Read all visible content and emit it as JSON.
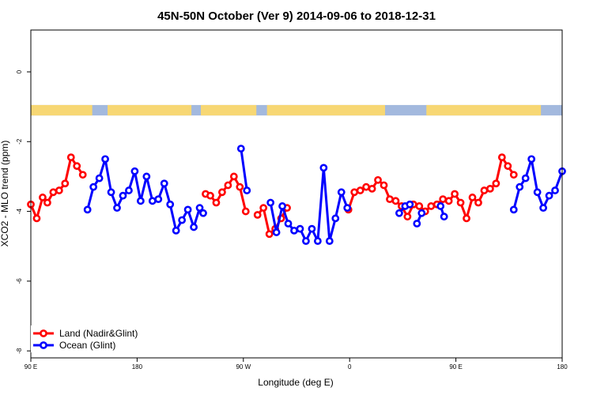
{
  "chart_data": {
    "type": "line",
    "title": "45N-50N October (Ver 9)   2014-09-06 to 2018-12-31",
    "xlabel": "Longitude (deg E)",
    "ylabel": "XCO2 - MLO trend (ppm)",
    "xlim": [
      90,
      540
    ],
    "ylim": [
      -8.2,
      1.2
    ],
    "x_ticks": [
      {
        "value": 90,
        "label": "90 E"
      },
      {
        "value": 180,
        "label": "180"
      },
      {
        "value": 270,
        "label": "90 W"
      },
      {
        "value": 360,
        "label": "0"
      },
      {
        "value": 450,
        "label": "90 E"
      },
      {
        "value": 540,
        "label": "180"
      }
    ],
    "y_ticks": [
      {
        "value": 0,
        "label": "0"
      },
      {
        "value": -2,
        "label": "-2"
      },
      {
        "value": -4,
        "label": "-4"
      },
      {
        "value": -6,
        "label": "-6"
      },
      {
        "value": -8,
        "label": "-8"
      }
    ],
    "grid": false,
    "legend_position": "bottom-left",
    "land_ocean_band": {
      "y_range": [
        -1.25,
        -0.95
      ],
      "land_color": "#f7d774",
      "ocean_color": "#a3b9de",
      "land_x": [
        [
          90,
          142
        ],
        [
          155,
          226
        ],
        [
          234,
          281
        ],
        [
          290,
          390
        ],
        [
          425,
          522
        ]
      ]
    },
    "series": [
      {
        "name": "Land (Nadir&Glint)",
        "color": "#ff0000",
        "segments": [
          [
            [
              90,
              -3.8
            ],
            [
              95,
              -4.2
            ],
            [
              100,
              -3.6
            ],
            [
              104,
              -3.75
            ],
            [
              109,
              -3.45
            ],
            [
              114,
              -3.4
            ],
            [
              119,
              -3.2
            ],
            [
              124,
              -2.45
            ],
            [
              129,
              -2.7
            ],
            [
              134,
              -2.95
            ]
          ],
          [
            [
              238,
              -3.5
            ],
            [
              242,
              -3.55
            ],
            [
              247,
              -3.75
            ],
            [
              252,
              -3.45
            ],
            [
              257,
              -3.25
            ],
            [
              262,
              -3.0
            ],
            [
              267,
              -3.3
            ],
            [
              272,
              -4.0
            ]
          ],
          [
            [
              282,
              -4.1
            ],
            [
              287,
              -3.9
            ],
            [
              292,
              -4.65
            ],
            [
              297,
              -4.5
            ],
            [
              302,
              -4.2
            ],
            [
              307,
              -3.9
            ]
          ],
          [
            [
              359,
              -3.95
            ],
            [
              364,
              -3.45
            ],
            [
              369,
              -3.4
            ],
            [
              374,
              -3.3
            ],
            [
              379,
              -3.35
            ],
            [
              384,
              -3.1
            ],
            [
              389,
              -3.25
            ],
            [
              394,
              -3.65
            ],
            [
              399,
              -3.7
            ],
            [
              404,
              -3.85
            ],
            [
              409,
              -4.15
            ],
            [
              414,
              -3.8
            ],
            [
              419,
              -3.85
            ],
            [
              424,
              -4.0
            ],
            [
              429,
              -3.85
            ],
            [
              434,
              -3.8
            ],
            [
              439,
              -3.65
            ],
            [
              444,
              -3.7
            ],
            [
              449,
              -3.5
            ],
            [
              454,
              -3.75
            ],
            [
              459,
              -4.2
            ],
            [
              464,
              -3.6
            ],
            [
              469,
              -3.75
            ],
            [
              474,
              -3.4
            ],
            [
              479,
              -3.35
            ],
            [
              484,
              -3.2
            ],
            [
              489,
              -2.45
            ],
            [
              494,
              -2.7
            ],
            [
              499,
              -2.95
            ]
          ]
        ]
      },
      {
        "name": "Ocean (Glint)",
        "color": "#0000ff",
        "segments": [
          [
            [
              138,
              -3.95
            ],
            [
              143,
              -3.3
            ],
            [
              148,
              -3.05
            ],
            [
              153,
              -2.5
            ],
            [
              158,
              -3.45
            ],
            [
              163,
              -3.9
            ],
            [
              168,
              -3.55
            ],
            [
              173,
              -3.4
            ],
            [
              178,
              -2.85
            ],
            [
              183,
              -3.7
            ],
            [
              188,
              -3.0
            ],
            [
              193,
              -3.7
            ],
            [
              198,
              -3.65
            ],
            [
              203,
              -3.2
            ],
            [
              208,
              -3.8
            ],
            [
              213,
              -4.55
            ],
            [
              218,
              -4.25
            ],
            [
              223,
              -3.95
            ],
            [
              228,
              -4.45
            ],
            [
              233,
              -3.9
            ],
            [
              236,
              -4.05
            ]
          ],
          [
            [
              268,
              -2.2
            ],
            [
              273,
              -3.4
            ]
          ],
          [
            [
              293,
              -3.75
            ],
            [
              298,
              -4.6
            ],
            [
              303,
              -3.85
            ],
            [
              308,
              -4.35
            ],
            [
              313,
              -4.55
            ],
            [
              318,
              -4.5
            ],
            [
              323,
              -4.85
            ],
            [
              328,
              -4.5
            ],
            [
              333,
              -4.85
            ],
            [
              338,
              -2.75
            ],
            [
              343,
              -4.85
            ],
            [
              348,
              -4.2
            ],
            [
              353,
              -3.45
            ],
            [
              358,
              -3.9
            ]
          ],
          [
            [
              402,
              -4.05
            ],
            [
              407,
              -3.85
            ],
            [
              411,
              -3.8
            ]
          ],
          [
            [
              417,
              -4.35
            ],
            [
              421,
              -4.05
            ]
          ],
          [
            [
              437,
              -3.85
            ],
            [
              440,
              -4.15
            ]
          ],
          [
            [
              499,
              -3.95
            ],
            [
              504,
              -3.3
            ],
            [
              509,
              -3.05
            ],
            [
              514,
              -2.5
            ],
            [
              519,
              -3.45
            ],
            [
              524,
              -3.9
            ],
            [
              529,
              -3.55
            ],
            [
              534,
              -3.4
            ],
            [
              540,
              -2.85
            ]
          ]
        ]
      }
    ]
  }
}
